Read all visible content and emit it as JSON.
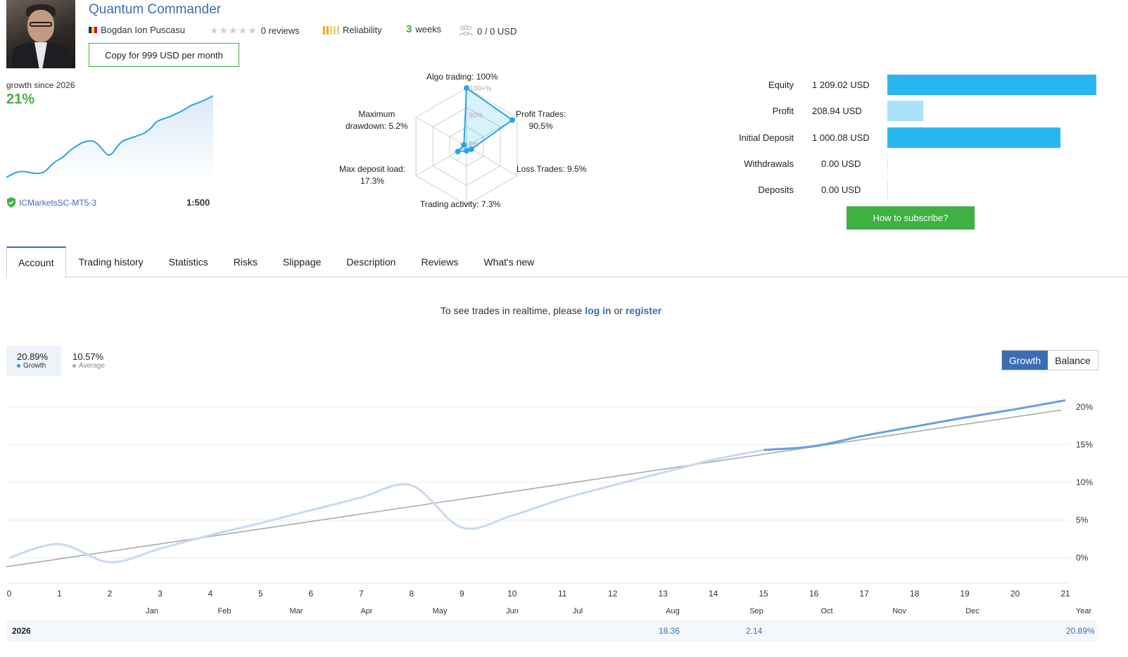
{
  "header": {
    "title": "Quantum Commander",
    "author": "Bogdan Ion Puscasu",
    "reviews": "0 reviews",
    "reliability": "Reliability",
    "weeks_num": "3",
    "weeks_label": "weeks",
    "subscribers": "0 / 0 USD",
    "copy_button": "Copy for 999 USD per month",
    "icons": {
      "flag": "romania-flag-icon",
      "stars": "rating-stars-icon",
      "reliability": "reliability-bars-icon",
      "subscribers": "subscribers-icon"
    }
  },
  "growth": {
    "label": "growth since 2026",
    "value": "21%",
    "broker": "ICMarketsSC-MT5-3",
    "leverage": "1:500"
  },
  "radar": {
    "labels": {
      "algo": "Algo trading: 100%",
      "profit_trades_1": "Profit Trades:",
      "profit_trades_2": "90.5%",
      "loss_trades": "Loss Trades: 9.5%",
      "activity": "Trading activity: 7.3%",
      "deposit_load_1": "Max deposit load:",
      "deposit_load_2": "17.3%",
      "drawdown_1": "Maximum",
      "drawdown_2": "drawdown: 5.2%"
    },
    "scale_labels": [
      "100+%",
      "50%",
      "0%"
    ],
    "values": [
      100,
      90.5,
      9.5,
      7.3,
      17.3,
      5.2
    ]
  },
  "equity": {
    "rows": [
      {
        "label": "Equity",
        "value": "1 209.02 USD",
        "fraction": 1.0,
        "color": "#29b6f0"
      },
      {
        "label": "Profit",
        "value": "208.94 USD",
        "fraction": 0.173,
        "color": "#a9e2f8"
      },
      {
        "label": "Initial Deposit",
        "value": "1 000.08 USD",
        "fraction": 0.827,
        "color": "#29b6f0"
      },
      {
        "label": "Withdrawals",
        "value": "0.00 USD",
        "fraction": 0,
        "color": "#a9e2f8"
      },
      {
        "label": "Deposits",
        "value": "0.00 USD",
        "fraction": 0,
        "color": "#a9e2f8"
      }
    ],
    "subscribe_button": "How to subscribe?"
  },
  "tabs": [
    "Account",
    "Trading history",
    "Statistics",
    "Risks",
    "Slippage",
    "Description",
    "Reviews",
    "What's new"
  ],
  "realtime": {
    "prefix": "To see trades in realtime, please",
    "login": "log in",
    "or": "or",
    "register": "register"
  },
  "chart_panel": {
    "growth_value": "20.89%",
    "growth_label": "Growth",
    "average_value": "10.57%",
    "average_label": "Average",
    "toggle": [
      "Growth",
      "Balance"
    ]
  },
  "chart_data": {
    "type": "line",
    "x": [
      0,
      1,
      2,
      3,
      4,
      5,
      6,
      7,
      8,
      9,
      10,
      11,
      12,
      13,
      14,
      15,
      16,
      17,
      18,
      19,
      20,
      21
    ],
    "x_tick_labels": [
      "0",
      "1",
      "2",
      "3",
      "4",
      "5",
      "6",
      "7",
      "8",
      "9",
      "10",
      "11",
      "12",
      "13",
      "14",
      "15",
      "16",
      "17",
      "18",
      "19",
      "20",
      "21"
    ],
    "month_labels": [
      "Jan",
      "Feb",
      "Mar",
      "Apr",
      "May",
      "Jun",
      "Jul",
      "Aug",
      "Sep",
      "Oct",
      "Nov",
      "Dec",
      "Year"
    ],
    "y_tick_labels": [
      "20%",
      "15%",
      "10%",
      "5%",
      "0%"
    ],
    "ylim": [
      0,
      20
    ],
    "series": [
      {
        "name": "Growth",
        "color": "#6a9fe0",
        "values": [
          0,
          1.8,
          -0.6,
          1.2,
          3.0,
          4.6,
          6.3,
          8.0,
          9.6,
          4.0,
          5.6,
          7.8,
          9.6,
          11.3,
          13.0,
          14.3,
          14.8,
          16.2,
          17.4,
          18.6,
          19.7,
          20.89
        ]
      },
      {
        "name": "Average",
        "color": "#aaaaaa",
        "values": [
          -1.2,
          0.0,
          1.0,
          2.0,
          3.0,
          4.0,
          5.0,
          6.0,
          7.0,
          8.0,
          9.0,
          10.0,
          11.0,
          12.0,
          13.0,
          14.0,
          15.0,
          16.0,
          17.0,
          18.0,
          19.0,
          19.6
        ]
      }
    ]
  },
  "year_row": {
    "year": "2026",
    "aug": "18.36",
    "sep": "2.14",
    "total": "20.89%"
  }
}
